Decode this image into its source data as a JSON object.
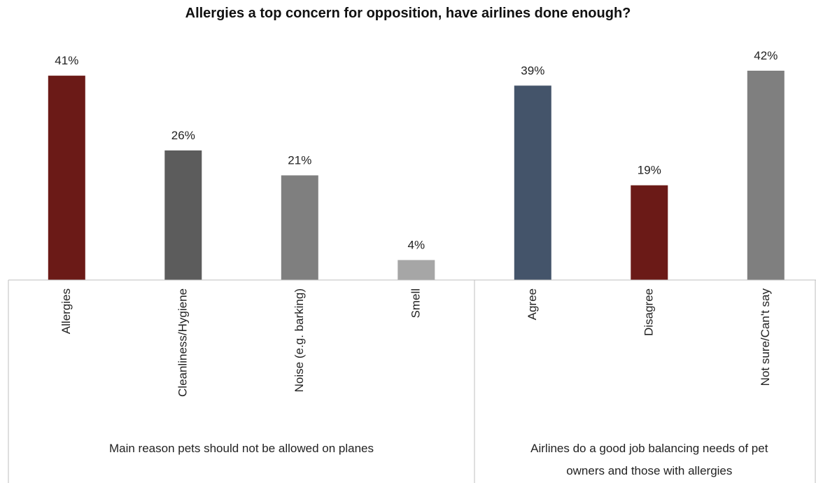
{
  "chart_data": {
    "type": "bar",
    "title": "Allergies a top concern for opposition, have airlines done enough?",
    "value_suffix": "%",
    "ylim": [
      0,
      45
    ],
    "grid": false,
    "legend": "none",
    "groups": [
      {
        "label_lines": [
          "Main reason pets should not be allowed on planes"
        ],
        "categories": [
          "Allergies",
          "Cleanliness/Hygiene",
          "Noise (e.g. barking)",
          "Smell"
        ],
        "values": [
          41,
          26,
          21,
          4
        ],
        "colors": [
          "#6b1a17",
          "#5c5c5c",
          "#7f7f7f",
          "#a6a6a6"
        ]
      },
      {
        "label_lines": [
          "Airlines do a good job balancing needs of pet",
          "owners and those with allergies"
        ],
        "categories": [
          "Agree",
          "Disagree",
          "Not sure/Can't say"
        ],
        "values": [
          39,
          19,
          42
        ],
        "colors": [
          "#44546a",
          "#6b1a17",
          "#7f7f7f"
        ]
      }
    ]
  }
}
